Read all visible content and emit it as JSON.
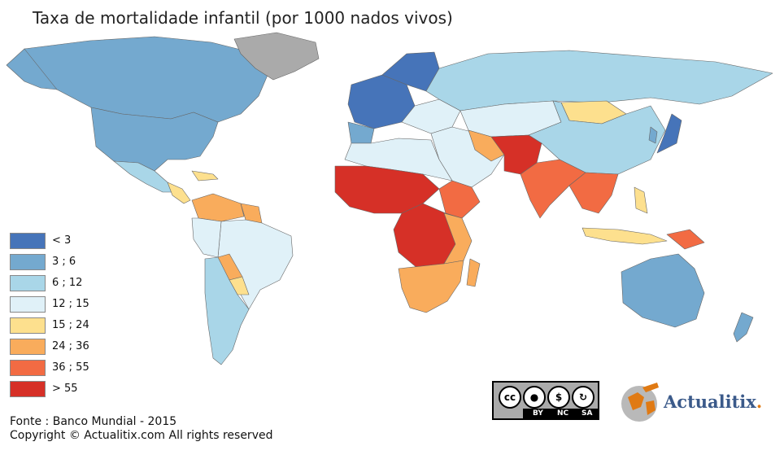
{
  "title": "Taxa de mortalidade infantil (por 1000 nados vivos)",
  "legend": [
    {
      "label": "< 3",
      "color": "#4674b9"
    },
    {
      "label": "3 ; 6",
      "color": "#74a9cf"
    },
    {
      "label": "6 ; 12",
      "color": "#a9d6e8"
    },
    {
      "label": "12 ; 15",
      "color": "#e0f1f8"
    },
    {
      "label": "15 ; 24",
      "color": "#fde08e"
    },
    {
      "label": "24 ; 36",
      "color": "#f9ac5c"
    },
    {
      "label": "36 ; 55",
      "color": "#f26b43"
    },
    {
      "label": "> 55",
      "color": "#d63027"
    }
  ],
  "no_data_color": "#aaaaaa",
  "source": "Fonte : Banco Mundial - 2015",
  "copyright": "Copyright © Actualitix.com All rights reserved",
  "license": {
    "icons": [
      "cc-icon",
      "by-icon",
      "nc-icon",
      "sa-icon"
    ],
    "labels": [
      "BY",
      "NC",
      "SA"
    ]
  },
  "brand": {
    "name": "Actualitix",
    "dot": "."
  }
}
